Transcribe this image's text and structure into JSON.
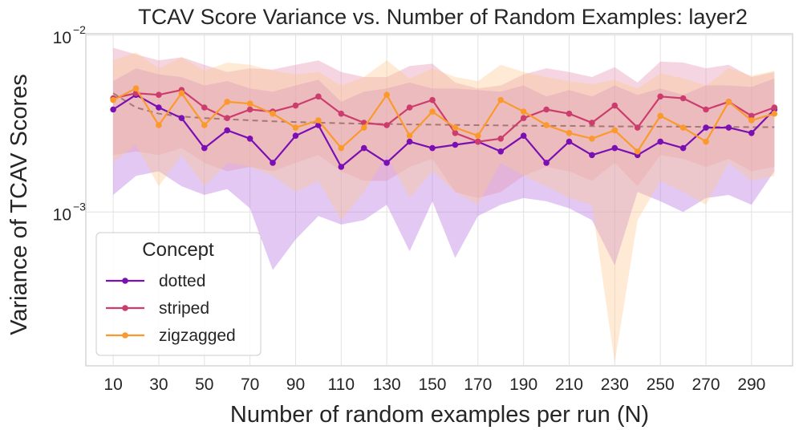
{
  "chart_data": {
    "type": "line",
    "title": "TCAV Score Variance vs. Number of Random Examples: layer2",
    "xlabel": "Number of random examples per run (N)",
    "ylabel": "Variance of TCAV Scores",
    "yscale": "log",
    "xlim": [
      -2,
      308
    ],
    "ylim": [
      0.000135,
      0.0102
    ],
    "xticks": [
      10,
      30,
      50,
      70,
      90,
      110,
      130,
      150,
      170,
      190,
      210,
      230,
      250,
      270,
      290
    ],
    "xtick_labels": [
      "10",
      "30",
      "50",
      "70",
      "90",
      "110",
      "130",
      "150",
      "170",
      "190",
      "210",
      "230",
      "250",
      "270",
      "290"
    ],
    "yticks": [
      {
        "value": 0.01,
        "base": "10",
        "exp": "−2"
      },
      {
        "value": 0.001,
        "base": "10",
        "exp": "−3"
      }
    ],
    "grid": true,
    "x": [
      10,
      20,
      30,
      40,
      50,
      60,
      70,
      80,
      90,
      100,
      110,
      120,
      130,
      140,
      150,
      160,
      170,
      180,
      190,
      200,
      210,
      220,
      230,
      240,
      250,
      260,
      270,
      280,
      290,
      300
    ],
    "legend": {
      "title": "Concept",
      "placement": "lower-left"
    },
    "series": [
      {
        "name": "dotted",
        "color": "#7a0fb4",
        "band_color": "#b26ee0",
        "values": [
          0.0038,
          0.0046,
          0.0039,
          0.0034,
          0.0023,
          0.0029,
          0.0026,
          0.0019,
          0.0027,
          0.0031,
          0.0018,
          0.0023,
          0.0019,
          0.0025,
          0.0023,
          0.0024,
          0.0025,
          0.0022,
          0.0027,
          0.0019,
          0.0025,
          0.0021,
          0.0023,
          0.0021,
          0.0025,
          0.0023,
          0.003,
          0.003,
          0.0028,
          0.0038
        ],
        "lower": [
          0.00125,
          0.0016,
          0.0017,
          0.0014,
          0.00125,
          0.00135,
          0.00105,
          0.00047,
          0.0007,
          0.00095,
          0.00085,
          0.0009,
          0.0011,
          0.0006,
          0.00115,
          0.00055,
          0.00095,
          0.0011,
          0.0012,
          0.00115,
          0.00105,
          0.0009,
          0.0005,
          0.0013,
          0.00115,
          0.001,
          0.0012,
          0.00125,
          0.0011,
          0.0017
        ],
        "upper": [
          0.0055,
          0.0065,
          0.006,
          0.0058,
          0.0052,
          0.0055,
          0.005,
          0.0048,
          0.0052,
          0.0056,
          0.0042,
          0.0048,
          0.005,
          0.0054,
          0.005,
          0.005,
          0.0049,
          0.0048,
          0.0052,
          0.0045,
          0.0049,
          0.0045,
          0.0052,
          0.0046,
          0.005,
          0.0046,
          0.0052,
          0.0052,
          0.0051,
          0.0057
        ]
      },
      {
        "name": "striped",
        "color": "#cc3d6e",
        "band_color": "#e590b0",
        "values": [
          0.0044,
          0.0047,
          0.0046,
          0.0049,
          0.0039,
          0.0034,
          0.0038,
          0.0037,
          0.004,
          0.0045,
          0.0036,
          0.0032,
          0.0031,
          0.0039,
          0.0043,
          0.0028,
          0.0025,
          0.0026,
          0.0034,
          0.0038,
          0.0036,
          0.0032,
          0.004,
          0.003,
          0.0045,
          0.0044,
          0.0038,
          0.0042,
          0.0035,
          0.0039
        ],
        "lower": [
          0.0021,
          0.0022,
          0.0021,
          0.0023,
          0.0019,
          0.0017,
          0.0018,
          0.0017,
          0.0019,
          0.0021,
          0.0017,
          0.0015,
          0.0015,
          0.0018,
          0.002,
          0.0013,
          0.0012,
          0.0013,
          0.0016,
          0.0018,
          0.0017,
          0.0015,
          0.0019,
          0.0014,
          0.0021,
          0.002,
          0.0018,
          0.002,
          0.0017,
          0.0018
        ],
        "upper": [
          0.0085,
          0.0078,
          0.0072,
          0.0075,
          0.0068,
          0.0062,
          0.0065,
          0.0064,
          0.0068,
          0.0072,
          0.0062,
          0.0058,
          0.0058,
          0.0067,
          0.0069,
          0.0054,
          0.005,
          0.0052,
          0.006,
          0.0065,
          0.0062,
          0.0058,
          0.0066,
          0.0054,
          0.0071,
          0.007,
          0.0065,
          0.0068,
          0.0058,
          0.0062
        ]
      },
      {
        "name": "zigzagged",
        "color": "#fb9a2c",
        "band_color": "#fdc890",
        "values": [
          0.0043,
          0.005,
          0.0031,
          0.0047,
          0.0031,
          0.0042,
          0.0041,
          0.0036,
          0.003,
          0.0033,
          0.0023,
          0.003,
          0.0046,
          0.0027,
          0.0037,
          0.003,
          0.0027,
          0.0043,
          0.0037,
          0.0031,
          0.0028,
          0.0026,
          0.0029,
          0.0022,
          0.0035,
          0.003,
          0.0025,
          0.0042,
          0.0033,
          0.0036
        ],
        "lower": [
          0.0019,
          0.0024,
          0.0014,
          0.0021,
          0.0014,
          0.0019,
          0.0018,
          0.0016,
          0.0013,
          0.0015,
          0.0009,
          0.0013,
          0.0021,
          0.0012,
          0.0017,
          0.0013,
          0.0011,
          0.0019,
          0.0016,
          0.0014,
          0.0012,
          0.0011,
          0.00014,
          0.0009,
          0.0015,
          0.0013,
          0.0011,
          0.0019,
          0.0015,
          0.0016
        ],
        "upper": [
          0.0072,
          0.008,
          0.0065,
          0.0075,
          0.0063,
          0.007,
          0.0068,
          0.0063,
          0.006,
          0.0062,
          0.0052,
          0.0058,
          0.0072,
          0.0057,
          0.0065,
          0.0058,
          0.0055,
          0.0068,
          0.0062,
          0.0058,
          0.0055,
          0.0053,
          0.0056,
          0.005,
          0.0061,
          0.0057,
          0.0052,
          0.0065,
          0.0059,
          0.0063
        ]
      }
    ],
    "trend": {
      "name": "trend",
      "color": "#a07068",
      "x": [
        10,
        20,
        30,
        40,
        50,
        60,
        70,
        80,
        90,
        100,
        110,
        120,
        130,
        140,
        150,
        160,
        170,
        180,
        190,
        200,
        210,
        220,
        230,
        240,
        250,
        260,
        270,
        280,
        290,
        300
      ],
      "values": [
        0.0047,
        0.0039,
        0.0036,
        0.00347,
        0.0034,
        0.00335,
        0.0033,
        0.00326,
        0.00323,
        0.0032,
        0.00318,
        0.00316,
        0.00315,
        0.00313,
        0.00312,
        0.00311,
        0.0031,
        0.00309,
        0.00308,
        0.00307,
        0.00307,
        0.00306,
        0.00305,
        0.00305,
        0.00304,
        0.00304,
        0.00303,
        0.00303,
        0.00302,
        0.00302
      ]
    }
  }
}
